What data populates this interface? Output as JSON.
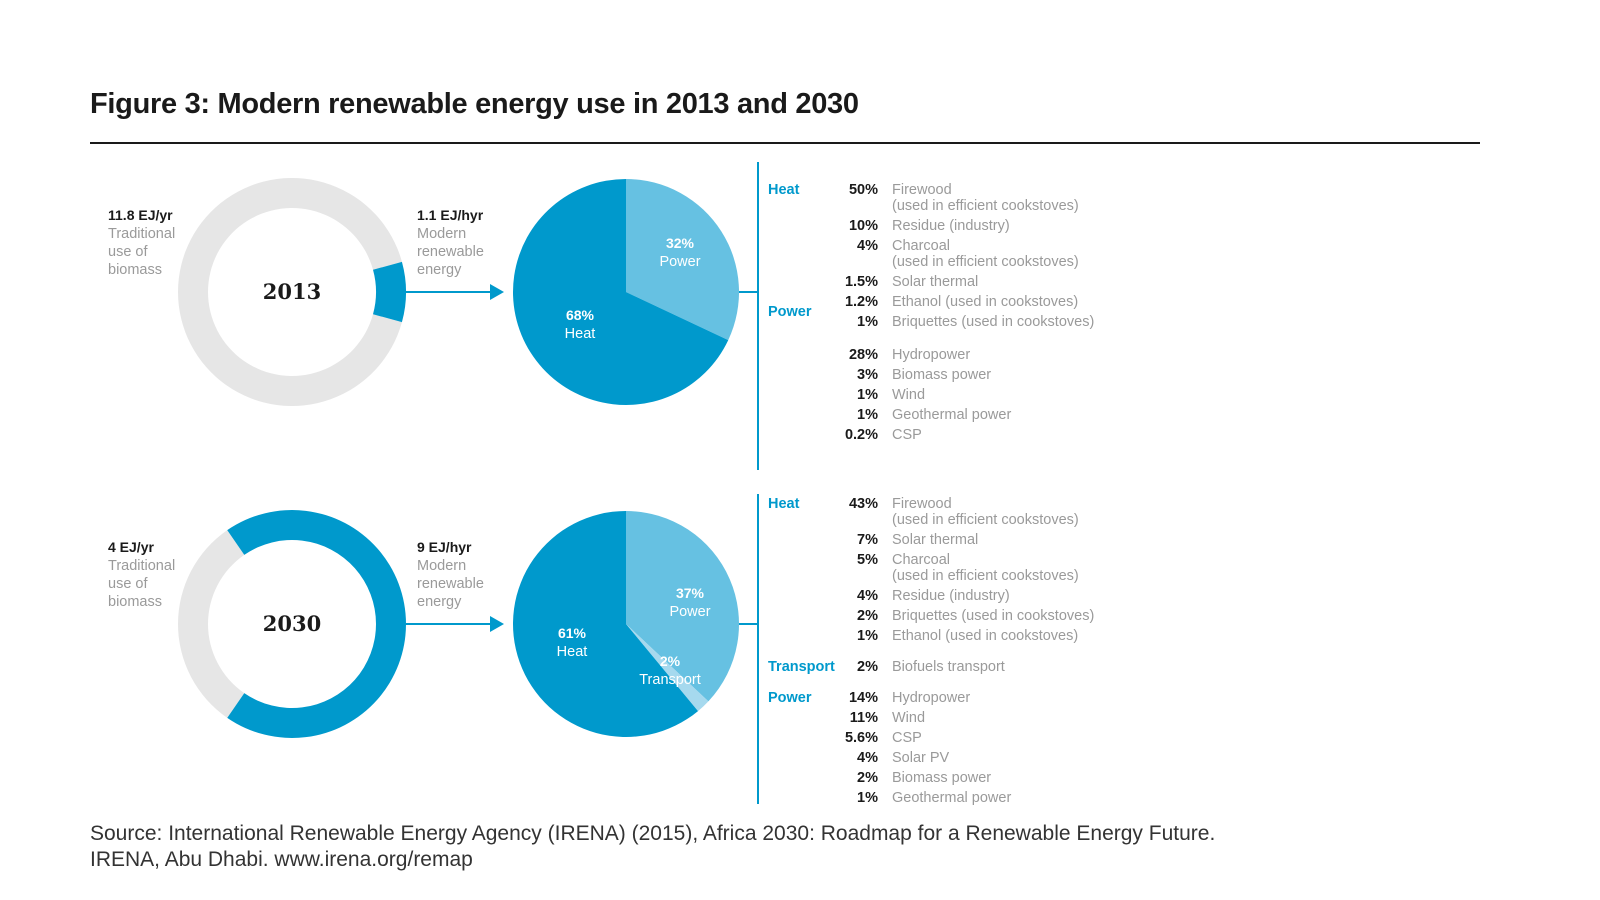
{
  "title": "Figure 3: Modern renewable energy use in 2013 and 2030",
  "source": {
    "line1": "Source: International Renewable Energy Agency (IRENA) (2015), Africa 2030: Roadmap for a Renewable Energy Future.",
    "line2": "IRENA, Abu Dhabi. www.irena.org/remap"
  },
  "colors": {
    "accent": "#0099cc",
    "light_accent": "#66c1e2",
    "lightest_accent": "#a6d9ee",
    "grey_ring": "#e6e6e6",
    "label_grey": "#9a9a9a",
    "text": "#1a1a1a"
  },
  "chart_data": [
    {
      "type": "pie",
      "year": "2013",
      "donut": {
        "traditional": {
          "value_label": "11.8 EJ/yr",
          "text": [
            "Traditional",
            "use of",
            "biomass"
          ],
          "value": 11.8
        },
        "modern": {
          "value_label": "1.1 EJ/hyr",
          "text": [
            "Modern",
            "renewable",
            "energy"
          ],
          "value": 1.1
        }
      },
      "pie": [
        {
          "name": "Power",
          "pct": 32,
          "label": "32%"
        },
        {
          "name": "Heat",
          "pct": 68,
          "label": "68%"
        }
      ],
      "breakdown": [
        {
          "category": "Heat",
          "items": [
            {
              "pct": "50%",
              "name": [
                "Firewood",
                "(used in efficient cookstoves)"
              ]
            },
            {
              "pct": "10%",
              "name": [
                "Residue (industry)"
              ]
            },
            {
              "pct": "4%",
              "name": [
                "Charcoal",
                "(used in efficient cookstoves)"
              ]
            },
            {
              "pct": "1.5%",
              "name": [
                "Solar thermal"
              ]
            },
            {
              "pct": "1.2%",
              "name": [
                "Ethanol (used in cookstoves)"
              ]
            },
            {
              "pct": "1%",
              "name": [
                "Briquettes (used in cookstoves)"
              ]
            }
          ]
        },
        {
          "category": "Power",
          "items": [
            {
              "pct": "28%",
              "name": [
                "Hydropower"
              ]
            },
            {
              "pct": "3%",
              "name": [
                "Biomass power"
              ]
            },
            {
              "pct": "1%",
              "name": [
                "Wind"
              ]
            },
            {
              "pct": "1%",
              "name": [
                "Geothermal power"
              ]
            },
            {
              "pct": "0.2%",
              "name": [
                "CSP"
              ]
            }
          ]
        }
      ]
    },
    {
      "type": "pie",
      "year": "2030",
      "donut": {
        "traditional": {
          "value_label": "4 EJ/yr",
          "text": [
            "Traditional",
            "use of",
            "biomass"
          ],
          "value": 4
        },
        "modern": {
          "value_label": "9 EJ/hyr",
          "text": [
            "Modern",
            "renewable",
            "energy"
          ],
          "value": 9
        }
      },
      "pie": [
        {
          "name": "Power",
          "pct": 37,
          "label": "37%"
        },
        {
          "name": "Transport",
          "pct": 2,
          "label": "2%"
        },
        {
          "name": "Heat",
          "pct": 61,
          "label": "61%"
        }
      ],
      "breakdown": [
        {
          "category": "Heat",
          "items": [
            {
              "pct": "43%",
              "name": [
                "Firewood",
                "(used in efficient cookstoves)"
              ]
            },
            {
              "pct": "7%",
              "name": [
                "Solar thermal"
              ]
            },
            {
              "pct": "5%",
              "name": [
                "Charcoal",
                "(used in efficient cookstoves)"
              ]
            },
            {
              "pct": "4%",
              "name": [
                "Residue (industry)"
              ]
            },
            {
              "pct": "2%",
              "name": [
                "Briquettes (used in cookstoves)"
              ]
            },
            {
              "pct": "1%",
              "name": [
                "Ethanol (used in cookstoves)"
              ]
            }
          ]
        },
        {
          "category": "Transport",
          "items": [
            {
              "pct": "2%",
              "name": [
                "Biofuels transport"
              ]
            }
          ]
        },
        {
          "category": "Power",
          "items": [
            {
              "pct": "14%",
              "name": [
                "Hydropower"
              ]
            },
            {
              "pct": "11%",
              "name": [
                "Wind"
              ]
            },
            {
              "pct": "5.6%",
              "name": [
                "CSP"
              ]
            },
            {
              "pct": "4%",
              "name": [
                "Solar PV"
              ]
            },
            {
              "pct": "2%",
              "name": [
                "Biomass power"
              ]
            },
            {
              "pct": "1%",
              "name": [
                "Geothermal power"
              ]
            }
          ]
        }
      ]
    }
  ]
}
